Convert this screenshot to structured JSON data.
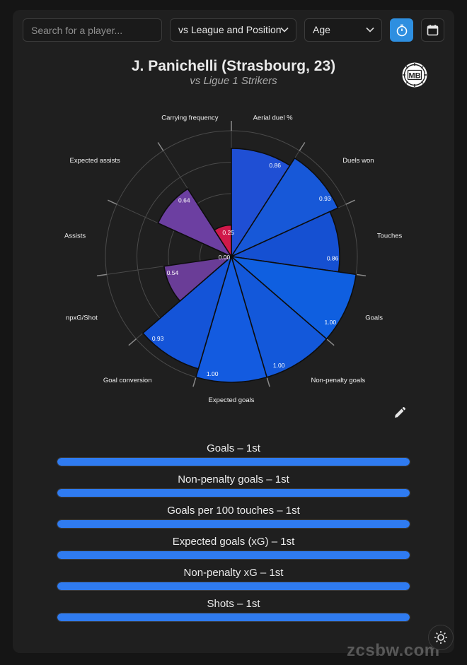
{
  "toolbar": {
    "search_placeholder": "Search for a player...",
    "comparison_select": "vs League and Position",
    "age_select": "Age"
  },
  "header": {
    "title": "J. Panichelli (Strasbourg, 23)",
    "subtitle": "vs Ligue 1 Strikers",
    "logo_text": "MB"
  },
  "chart_data": {
    "type": "polar-area",
    "title": "J. Panichelli (Strasbourg, 23)",
    "subtitle": "vs Ligue 1 Strikers",
    "center_label": "0.00",
    "rlim": [
      0,
      1
    ],
    "grid": true,
    "categories": [
      "Aerial duel %",
      "Duels won",
      "Touches",
      "Goals",
      "Non-penalty goals",
      "Expected goals",
      "Goal conversion",
      "npxG/Shot",
      "Assists",
      "Expected assists",
      "Carrying frequency"
    ],
    "values": [
      0.86,
      0.93,
      0.86,
      1.0,
      1.0,
      1.0,
      0.93,
      0.54,
      0.0,
      0.64,
      0.25
    ],
    "value_labels": [
      "0.86",
      "0.93",
      "0.86",
      "1.00",
      "1.00",
      "1.00",
      "0.93",
      "0.54",
      "",
      "0.64",
      "0.25"
    ],
    "colors": [
      "#1f4fd4",
      "#1758d8",
      "#1550d2",
      "#0f5fe0",
      "#1358da",
      "#135be0",
      "#1454d8",
      "#6a3d97",
      "#6a3d97",
      "#6c3fa1",
      "#d0194a"
    ]
  },
  "percentiles": [
    {
      "label": "Goals – 1st",
      "value": 1.0
    },
    {
      "label": "Non-penalty goals – 1st",
      "value": 1.0
    },
    {
      "label": "Goals per 100 touches – 1st",
      "value": 1.0
    },
    {
      "label": "Expected goals (xG) – 1st",
      "value": 1.0
    },
    {
      "label": "Non-penalty xG – 1st",
      "value": 1.0
    },
    {
      "label": "Shots – 1st",
      "value": 1.0
    }
  ],
  "watermark": "zcsbw.com",
  "colors": {
    "accent": "#2e8fe0",
    "bar_fill": "#2f7bf0",
    "background": "#1f1f1f"
  }
}
